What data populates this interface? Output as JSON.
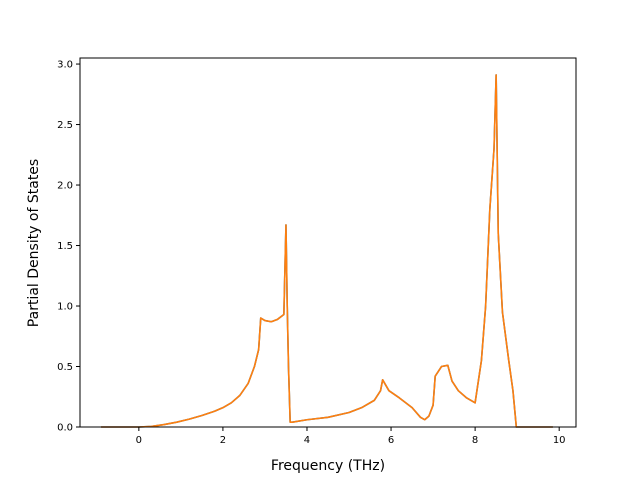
{
  "chart_data": {
    "type": "line",
    "xlabel": "Frequency (THz)",
    "ylabel": "Partial Density of States",
    "xlim": [
      -1.4,
      10.4
    ],
    "ylim": [
      0.0,
      3.05
    ],
    "xticks": [
      0,
      2,
      4,
      6,
      8,
      10
    ],
    "yticks": [
      0.0,
      0.5,
      1.0,
      1.5,
      2.0,
      2.5,
      3.0
    ],
    "xtick_labels": [
      "0",
      "2",
      "4",
      "6",
      "8",
      "10"
    ],
    "ytick_labels": [
      "0.0",
      "0.5",
      "1.0",
      "1.5",
      "2.0",
      "2.5",
      "3.0"
    ],
    "grid": false,
    "series": [
      {
        "color": "#1f77b4",
        "x": [
          -0.9,
          -0.5,
          0.0,
          0.3,
          0.6,
          0.9,
          1.2,
          1.5,
          1.8,
          2.0,
          2.2,
          2.4,
          2.6,
          2.75,
          2.85,
          2.9,
          3.0,
          3.15,
          3.3,
          3.45,
          3.5,
          3.53,
          3.56,
          3.6,
          3.65,
          4.0,
          4.5,
          5.0,
          5.3,
          5.6,
          5.75,
          5.8,
          5.85,
          5.95,
          6.2,
          6.5,
          6.7,
          6.8,
          6.9,
          7.0,
          7.05,
          7.2,
          7.35,
          7.45,
          7.6,
          7.8,
          8.0,
          8.15,
          8.25,
          8.35,
          8.45,
          8.5,
          8.55,
          8.65,
          8.8,
          8.9,
          8.98,
          9.4,
          9.85
        ],
        "y": [
          0.0,
          0.0,
          0.0,
          0.005,
          0.02,
          0.04,
          0.065,
          0.095,
          0.13,
          0.16,
          0.2,
          0.26,
          0.36,
          0.5,
          0.64,
          0.9,
          0.88,
          0.87,
          0.89,
          0.93,
          1.67,
          1.0,
          0.5,
          0.04,
          0.04,
          0.06,
          0.08,
          0.12,
          0.16,
          0.22,
          0.3,
          0.39,
          0.36,
          0.3,
          0.24,
          0.16,
          0.08,
          0.06,
          0.09,
          0.18,
          0.42,
          0.5,
          0.51,
          0.38,
          0.3,
          0.24,
          0.2,
          0.55,
          1.0,
          1.8,
          2.3,
          2.91,
          1.6,
          0.95,
          0.55,
          0.3,
          0.0,
          0.0,
          0.0
        ]
      },
      {
        "color": "#ff7f0e",
        "x": [
          -0.9,
          -0.5,
          0.0,
          0.3,
          0.6,
          0.9,
          1.2,
          1.5,
          1.8,
          2.0,
          2.2,
          2.4,
          2.6,
          2.75,
          2.85,
          2.9,
          3.0,
          3.15,
          3.3,
          3.45,
          3.5,
          3.53,
          3.56,
          3.6,
          3.65,
          4.0,
          4.5,
          5.0,
          5.3,
          5.6,
          5.75,
          5.8,
          5.85,
          5.95,
          6.2,
          6.5,
          6.7,
          6.8,
          6.9,
          7.0,
          7.05,
          7.2,
          7.35,
          7.45,
          7.6,
          7.8,
          8.0,
          8.15,
          8.25,
          8.35,
          8.45,
          8.5,
          8.55,
          8.65,
          8.8,
          8.9,
          8.98,
          9.4,
          9.85
        ],
        "y": [
          0.0,
          0.0,
          0.0,
          0.005,
          0.02,
          0.04,
          0.065,
          0.095,
          0.13,
          0.16,
          0.2,
          0.26,
          0.36,
          0.5,
          0.64,
          0.9,
          0.88,
          0.87,
          0.89,
          0.93,
          1.67,
          1.0,
          0.5,
          0.04,
          0.04,
          0.06,
          0.08,
          0.12,
          0.16,
          0.22,
          0.3,
          0.39,
          0.36,
          0.3,
          0.24,
          0.16,
          0.08,
          0.06,
          0.09,
          0.18,
          0.42,
          0.5,
          0.51,
          0.38,
          0.3,
          0.24,
          0.2,
          0.55,
          1.0,
          1.8,
          2.3,
          2.91,
          1.6,
          0.95,
          0.55,
          0.3,
          0.0,
          0.0,
          0.0
        ]
      }
    ]
  }
}
